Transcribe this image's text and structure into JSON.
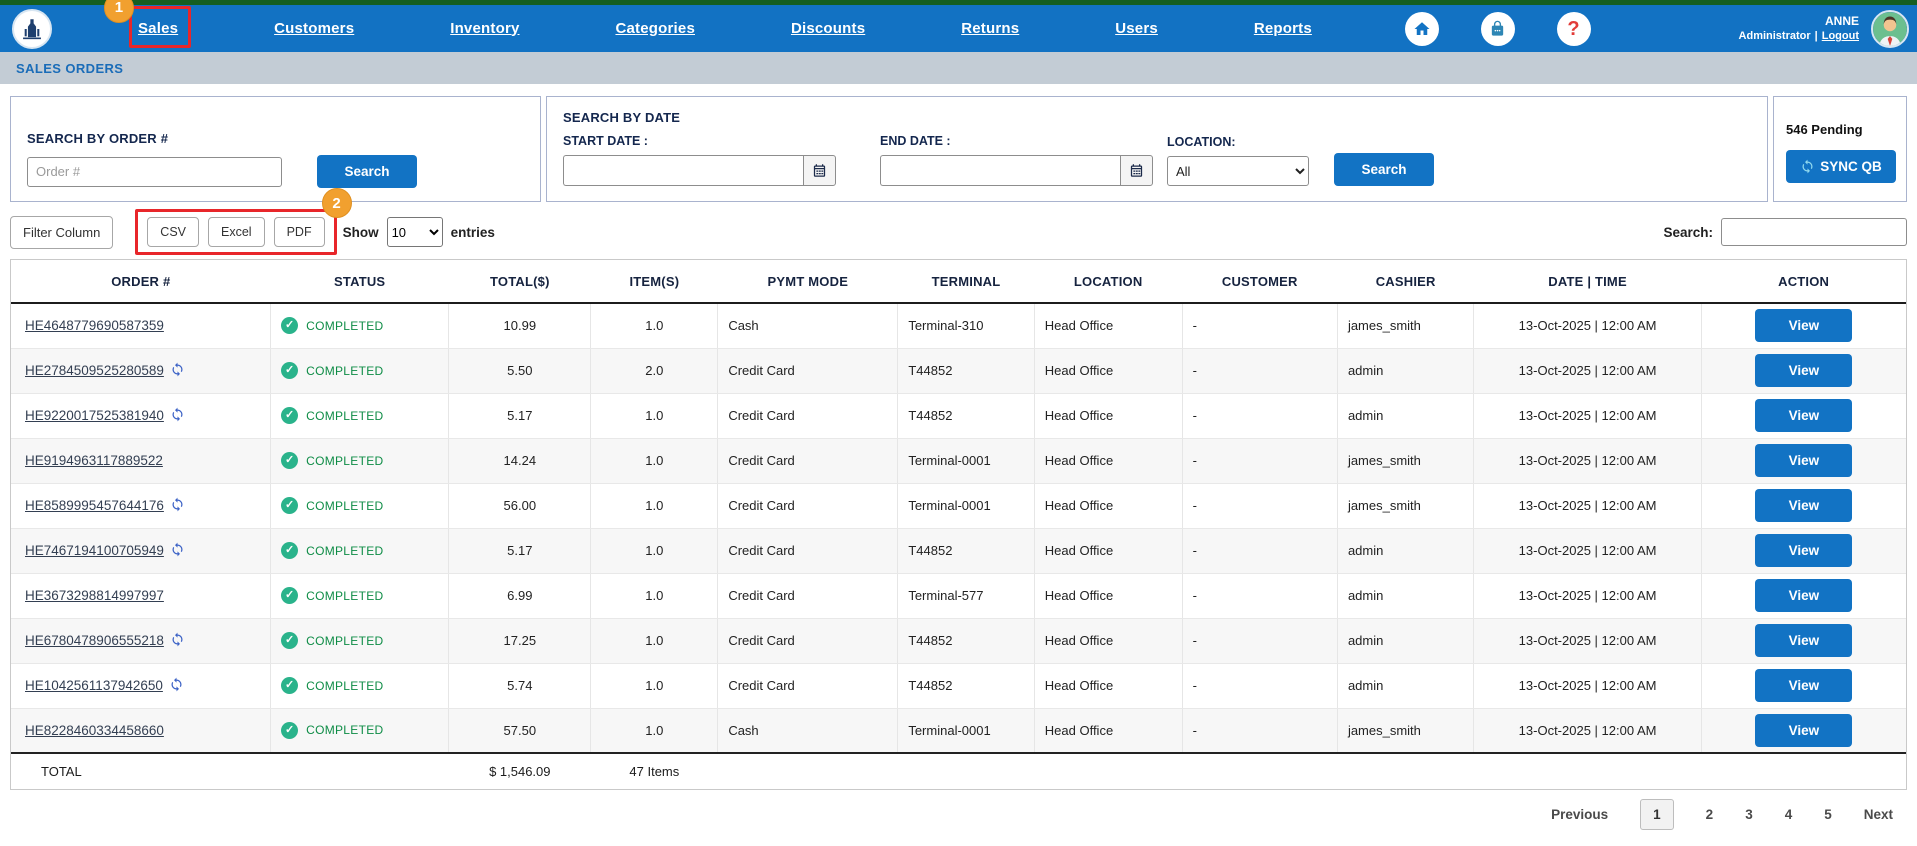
{
  "colors": {
    "accent_blue": "#1273c4",
    "nav_blue": "#1272c3",
    "top_strip_green": "#155e21",
    "annotation_red": "#e8262a",
    "badge_orange": "#f1a02f",
    "status_green": "#0e8c46",
    "breadcrumb_bg": "#c3ccd5"
  },
  "nav": {
    "items": [
      {
        "label": "Sales",
        "annotation": "1"
      },
      {
        "label": "Customers"
      },
      {
        "label": "Inventory"
      },
      {
        "label": "Categories"
      },
      {
        "label": "Discounts"
      },
      {
        "label": "Returns"
      },
      {
        "label": "Users"
      },
      {
        "label": "Reports"
      }
    ]
  },
  "icons": {
    "help_glyph": "?"
  },
  "user": {
    "name": "ANNE",
    "role": "Administrator",
    "separator": "|",
    "logout": "Logout"
  },
  "breadcrumb": "SALES ORDERS",
  "search_order": {
    "title": "SEARCH BY ORDER #",
    "placeholder": "Order #",
    "button": "Search"
  },
  "search_date": {
    "title": "SEARCH BY DATE",
    "start_label": "START DATE :",
    "end_label": "END DATE :",
    "start_value": "",
    "end_value": "",
    "location_label": "LOCATION:",
    "location_value": "All",
    "location_options": [
      "All"
    ],
    "button": "Search"
  },
  "sync": {
    "pending": "546 Pending",
    "button": "SYNC QB"
  },
  "toolbar": {
    "filter_button": "Filter Column",
    "export_buttons": [
      "CSV",
      "Excel",
      "PDF"
    ],
    "annotation": "2",
    "show_label": "Show",
    "page_size": "10",
    "entries_label": "entries",
    "search_label": "Search:",
    "search_value": ""
  },
  "table": {
    "headers": [
      "ORDER #",
      "STATUS",
      "TOTAL($)",
      "ITEM(S)",
      "PYMT MODE",
      "TERMINAL",
      "LOCATION",
      "CUSTOMER",
      "CASHIER",
      "DATE | TIME",
      "ACTION"
    ],
    "view_label": "View",
    "rows": [
      {
        "order": "HE4648779690587359",
        "sync": false,
        "status": "COMPLETED",
        "total": "10.99",
        "items": "1.0",
        "pymt": "Cash",
        "terminal": "Terminal-310",
        "location": "Head Office",
        "customer": "-",
        "cashier": "james_smith",
        "datetime": "13-Oct-2025 | 12:00 AM"
      },
      {
        "order": "HE2784509525280589",
        "sync": true,
        "status": "COMPLETED",
        "total": "5.50",
        "items": "2.0",
        "pymt": "Credit Card",
        "terminal": "T44852",
        "location": "Head Office",
        "customer": "-",
        "cashier": "admin",
        "datetime": "13-Oct-2025 | 12:00 AM"
      },
      {
        "order": "HE9220017525381940",
        "sync": true,
        "status": "COMPLETED",
        "total": "5.17",
        "items": "1.0",
        "pymt": "Credit Card",
        "terminal": "T44852",
        "location": "Head Office",
        "customer": "-",
        "cashier": "admin",
        "datetime": "13-Oct-2025 | 12:00 AM"
      },
      {
        "order": "HE9194963117889522",
        "sync": false,
        "status": "COMPLETED",
        "total": "14.24",
        "items": "1.0",
        "pymt": "Credit Card",
        "terminal": "Terminal-0001",
        "location": "Head Office",
        "customer": "-",
        "cashier": "james_smith",
        "datetime": "13-Oct-2025 | 12:00 AM"
      },
      {
        "order": "HE8589995457644176",
        "sync": true,
        "status": "COMPLETED",
        "total": "56.00",
        "items": "1.0",
        "pymt": "Credit Card",
        "terminal": "Terminal-0001",
        "location": "Head Office",
        "customer": "-",
        "cashier": "james_smith",
        "datetime": "13-Oct-2025 | 12:00 AM"
      },
      {
        "order": "HE7467194100705949",
        "sync": true,
        "status": "COMPLETED",
        "total": "5.17",
        "items": "1.0",
        "pymt": "Credit Card",
        "terminal": "T44852",
        "location": "Head Office",
        "customer": "-",
        "cashier": "admin",
        "datetime": "13-Oct-2025 | 12:00 AM"
      },
      {
        "order": "HE3673298814997997",
        "sync": false,
        "status": "COMPLETED",
        "total": "6.99",
        "items": "1.0",
        "pymt": "Credit Card",
        "terminal": "Terminal-577",
        "location": "Head Office",
        "customer": "-",
        "cashier": "admin",
        "datetime": "13-Oct-2025 | 12:00 AM"
      },
      {
        "order": "HE6780478906555218",
        "sync": true,
        "status": "COMPLETED",
        "total": "17.25",
        "items": "1.0",
        "pymt": "Credit Card",
        "terminal": "T44852",
        "location": "Head Office",
        "customer": "-",
        "cashier": "admin",
        "datetime": "13-Oct-2025 | 12:00 AM"
      },
      {
        "order": "HE1042561137942650",
        "sync": true,
        "status": "COMPLETED",
        "total": "5.74",
        "items": "1.0",
        "pymt": "Credit Card",
        "terminal": "T44852",
        "location": "Head Office",
        "customer": "-",
        "cashier": "admin",
        "datetime": "13-Oct-2025 | 12:00 AM"
      },
      {
        "order": "HE8228460334458660",
        "sync": false,
        "status": "COMPLETED",
        "total": "57.50",
        "items": "1.0",
        "pymt": "Cash",
        "terminal": "Terminal-0001",
        "location": "Head Office",
        "customer": "-",
        "cashier": "james_smith",
        "datetime": "13-Oct-2025 | 12:00 AM"
      }
    ],
    "total_row": {
      "label": "TOTAL",
      "total": "$ 1,546.09",
      "items": "47 Items"
    }
  },
  "pagination": {
    "previous": "Previous",
    "pages": [
      "1",
      "2",
      "3",
      "4",
      "5"
    ],
    "active_page": "1",
    "next": "Next"
  }
}
